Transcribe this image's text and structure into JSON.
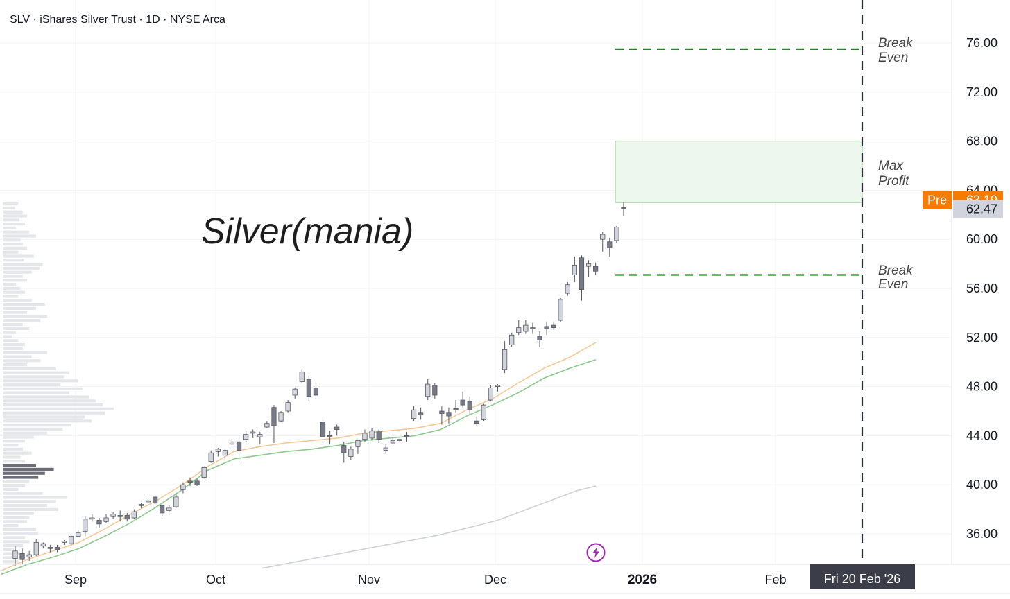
{
  "chart_data": {
    "type": "candlestick",
    "title": "SLV · iShares Silver Trust · 1D · NYSE Arca",
    "annotation": "Silver(mania)",
    "y_ticks": [
      "76.00",
      "72.00",
      "68.00",
      "64.00",
      "60.00",
      "56.00",
      "52.00",
      "48.00",
      "44.00",
      "40.00",
      "36.00"
    ],
    "x_ticks": [
      {
        "label": "Sep",
        "bold": false
      },
      {
        "label": "Oct",
        "bold": false
      },
      {
        "label": "Nov",
        "bold": false
      },
      {
        "label": "Dec",
        "bold": false
      },
      {
        "label": "2026",
        "bold": true
      },
      {
        "label": "Feb",
        "bold": false
      }
    ],
    "ylim": [
      33,
      79
    ],
    "candles": [
      {
        "d": "Aug 26",
        "o": 34.0,
        "h": 35.0,
        "l": 33.4,
        "c": 34.6
      },
      {
        "d": "Aug 27",
        "o": 34.4,
        "h": 34.8,
        "l": 33.5,
        "c": 33.9
      },
      {
        "d": "Aug 28",
        "o": 34.1,
        "h": 34.6,
        "l": 33.8,
        "c": 34.3
      },
      {
        "d": "Aug 29",
        "o": 34.3,
        "h": 35.6,
        "l": 34.2,
        "c": 35.3
      },
      {
        "d": "Sep 02",
        "o": 35.0,
        "h": 35.3,
        "l": 34.8,
        "c": 35.2
      },
      {
        "d": "Sep 03",
        "o": 34.8,
        "h": 35.1,
        "l": 34.5,
        "c": 34.9
      },
      {
        "d": "Sep 04",
        "o": 34.9,
        "h": 35.1,
        "l": 34.5,
        "c": 34.7
      },
      {
        "d": "Sep 05",
        "o": 35.3,
        "h": 35.5,
        "l": 35.1,
        "c": 35.4
      },
      {
        "d": "Sep 08",
        "o": 35.2,
        "h": 35.9,
        "l": 35.0,
        "c": 35.8
      },
      {
        "d": "Sep 09",
        "o": 35.8,
        "h": 36.3,
        "l": 35.7,
        "c": 36.1
      },
      {
        "d": "Sep 10",
        "o": 36.2,
        "h": 37.4,
        "l": 35.8,
        "c": 37.2
      },
      {
        "d": "Sep 11",
        "o": 37.2,
        "h": 37.6,
        "l": 37.0,
        "c": 37.3
      },
      {
        "d": "Sep 12",
        "o": 37.1,
        "h": 37.3,
        "l": 36.5,
        "c": 36.8
      },
      {
        "d": "Sep 15",
        "o": 37.0,
        "h": 37.6,
        "l": 36.9,
        "c": 37.3
      },
      {
        "d": "Sep 16",
        "o": 37.4,
        "h": 37.8,
        "l": 37.2,
        "c": 37.6
      },
      {
        "d": "Sep 17",
        "o": 37.4,
        "h": 37.9,
        "l": 37.0,
        "c": 37.5
      },
      {
        "d": "Sep 18",
        "o": 37.5,
        "h": 37.7,
        "l": 37.0,
        "c": 37.2
      },
      {
        "d": "Sep 19",
        "o": 37.3,
        "h": 38.0,
        "l": 37.2,
        "c": 37.8
      },
      {
        "d": "Sep 22",
        "o": 38.3,
        "h": 38.5,
        "l": 38.1,
        "c": 38.4
      },
      {
        "d": "Sep 23",
        "o": 38.6,
        "h": 38.9,
        "l": 38.5,
        "c": 38.7
      },
      {
        "d": "Sep 24",
        "o": 39.0,
        "h": 39.2,
        "l": 38.3,
        "c": 38.5
      },
      {
        "d": "Sep 25",
        "o": 38.3,
        "h": 38.5,
        "l": 37.4,
        "c": 37.7
      },
      {
        "d": "Sep 26",
        "o": 37.9,
        "h": 38.3,
        "l": 37.8,
        "c": 38.1
      },
      {
        "d": "Sep 29",
        "o": 38.2,
        "h": 39.3,
        "l": 38.1,
        "c": 39.0
      },
      {
        "d": "Sep 30",
        "o": 39.6,
        "h": 40.2,
        "l": 39.3,
        "c": 40.0
      },
      {
        "d": "Oct 01",
        "o": 40.3,
        "h": 40.6,
        "l": 39.9,
        "c": 40.2
      },
      {
        "d": "Oct 02",
        "o": 40.3,
        "h": 40.5,
        "l": 39.9,
        "c": 40.0
      },
      {
        "d": "Oct 03",
        "o": 40.6,
        "h": 41.5,
        "l": 40.5,
        "c": 41.4
      },
      {
        "d": "Oct 06",
        "o": 41.9,
        "h": 42.8,
        "l": 41.8,
        "c": 42.6
      },
      {
        "d": "Oct 07",
        "o": 42.7,
        "h": 43.0,
        "l": 42.3,
        "c": 42.9
      },
      {
        "d": "Oct 08",
        "o": 42.4,
        "h": 42.9,
        "l": 42.0,
        "c": 42.8
      },
      {
        "d": "Oct 09",
        "o": 43.3,
        "h": 43.8,
        "l": 42.8,
        "c": 43.5
      },
      {
        "d": "Oct 10",
        "o": 43.5,
        "h": 44.1,
        "l": 41.8,
        "c": 42.8
      },
      {
        "d": "Oct 13",
        "o": 43.7,
        "h": 44.4,
        "l": 43.4,
        "c": 44.1
      },
      {
        "d": "Oct 14",
        "o": 44.2,
        "h": 44.5,
        "l": 43.8,
        "c": 44.3
      },
      {
        "d": "Oct 15",
        "o": 43.9,
        "h": 44.3,
        "l": 43.3,
        "c": 44.1
      },
      {
        "d": "Oct 16",
        "o": 44.7,
        "h": 45.2,
        "l": 44.6,
        "c": 45.0
      },
      {
        "d": "Oct 17",
        "o": 46.3,
        "h": 46.5,
        "l": 43.4,
        "c": 44.8
      },
      {
        "d": "Oct 20",
        "o": 45.2,
        "h": 46.0,
        "l": 45.1,
        "c": 45.9
      },
      {
        "d": "Oct 21",
        "o": 46.0,
        "h": 46.9,
        "l": 45.9,
        "c": 46.7
      },
      {
        "d": "Oct 22",
        "o": 47.3,
        "h": 47.9,
        "l": 47.0,
        "c": 47.8
      },
      {
        "d": "Oct 23",
        "o": 48.4,
        "h": 49.4,
        "l": 48.3,
        "c": 49.2
      },
      {
        "d": "Oct 24",
        "o": 48.6,
        "h": 48.9,
        "l": 46.8,
        "c": 47.2
      },
      {
        "d": "Oct 27",
        "o": 47.9,
        "h": 48.1,
        "l": 47.0,
        "c": 47.3
      },
      {
        "d": "Oct 28",
        "o": 45.1,
        "h": 45.3,
        "l": 43.4,
        "c": 43.9
      },
      {
        "d": "Oct 29",
        "o": 44.0,
        "h": 44.4,
        "l": 43.3,
        "c": 43.9
      },
      {
        "d": "Oct 30",
        "o": 44.7,
        "h": 44.9,
        "l": 44.0,
        "c": 44.5
      },
      {
        "d": "Oct 31",
        "o": 43.2,
        "h": 43.5,
        "l": 41.8,
        "c": 42.6
      },
      {
        "d": "Nov 03",
        "o": 42.3,
        "h": 43.1,
        "l": 42.0,
        "c": 42.9
      },
      {
        "d": "Nov 04",
        "o": 43.1,
        "h": 43.7,
        "l": 42.5,
        "c": 43.6
      },
      {
        "d": "Nov 05",
        "o": 43.7,
        "h": 44.5,
        "l": 43.5,
        "c": 44.2
      },
      {
        "d": "Nov 06",
        "o": 43.8,
        "h": 44.6,
        "l": 43.6,
        "c": 44.4
      },
      {
        "d": "Nov 07",
        "o": 44.4,
        "h": 44.5,
        "l": 43.4,
        "c": 43.7
      },
      {
        "d": "Nov 10",
        "o": 42.8,
        "h": 43.3,
        "l": 42.5,
        "c": 43.0
      },
      {
        "d": "Nov 11",
        "o": 43.4,
        "h": 43.9,
        "l": 43.3,
        "c": 43.6
      },
      {
        "d": "Nov 12",
        "o": 43.6,
        "h": 43.9,
        "l": 43.4,
        "c": 43.7
      },
      {
        "d": "Nov 13",
        "o": 44.0,
        "h": 44.3,
        "l": 43.5,
        "c": 43.9
      },
      {
        "d": "Nov 14",
        "o": 45.4,
        "h": 46.4,
        "l": 45.2,
        "c": 46.1
      },
      {
        "d": "Nov 17",
        "o": 45.9,
        "h": 46.3,
        "l": 45.3,
        "c": 45.7
      },
      {
        "d": "Nov 18",
        "o": 47.2,
        "h": 48.6,
        "l": 46.9,
        "c": 48.2
      },
      {
        "d": "Nov 19",
        "o": 48.1,
        "h": 48.3,
        "l": 47.0,
        "c": 47.3
      },
      {
        "d": "Nov 20",
        "o": 46.0,
        "h": 46.4,
        "l": 44.9,
        "c": 45.8
      },
      {
        "d": "Nov 21",
        "o": 45.9,
        "h": 46.3,
        "l": 45.0,
        "c": 45.6
      },
      {
        "d": "Nov 24",
        "o": 46.2,
        "h": 46.9,
        "l": 45.9,
        "c": 46.1
      },
      {
        "d": "Nov 25",
        "o": 46.9,
        "h": 47.6,
        "l": 46.3,
        "c": 46.5
      },
      {
        "d": "Nov 26",
        "o": 46.8,
        "h": 47.2,
        "l": 45.7,
        "c": 46.1
      },
      {
        "d": "Nov 28",
        "o": 45.2,
        "h": 45.5,
        "l": 44.8,
        "c": 45.0
      },
      {
        "d": "Dec 01",
        "o": 45.3,
        "h": 46.6,
        "l": 45.2,
        "c": 46.5
      },
      {
        "d": "Dec 02",
        "o": 46.9,
        "h": 48.1,
        "l": 46.8,
        "c": 47.9
      },
      {
        "d": "Dec 03",
        "o": 48.0,
        "h": 48.2,
        "l": 47.6,
        "c": 48.1
      },
      {
        "d": "Dec 04",
        "o": 49.4,
        "h": 51.7,
        "l": 49.1,
        "c": 51.0
      },
      {
        "d": "Dec 05",
        "o": 51.4,
        "h": 52.4,
        "l": 51.2,
        "c": 52.2
      },
      {
        "d": "Dec 08",
        "o": 52.4,
        "h": 53.4,
        "l": 52.2,
        "c": 52.8
      },
      {
        "d": "Dec 09",
        "o": 52.5,
        "h": 53.4,
        "l": 52.3,
        "c": 53.0
      },
      {
        "d": "Dec 10",
        "o": 52.8,
        "h": 53.2,
        "l": 52.3,
        "c": 52.7
      },
      {
        "d": "Dec 11",
        "o": 52.1,
        "h": 52.5,
        "l": 51.2,
        "c": 51.8
      },
      {
        "d": "Dec 12",
        "o": 52.9,
        "h": 53.3,
        "l": 52.2,
        "c": 52.7
      },
      {
        "d": "Dec 15",
        "o": 53.0,
        "h": 53.3,
        "l": 52.6,
        "c": 52.8
      },
      {
        "d": "Dec 16",
        "o": 53.4,
        "h": 55.2,
        "l": 53.3,
        "c": 55.1
      },
      {
        "d": "Dec 17",
        "o": 55.6,
        "h": 56.5,
        "l": 55.4,
        "c": 56.3
      },
      {
        "d": "Dec 18",
        "o": 57.1,
        "h": 58.6,
        "l": 56.5,
        "c": 57.9
      },
      {
        "d": "Dec 19",
        "o": 58.5,
        "h": 58.7,
        "l": 55.0,
        "c": 55.9
      },
      {
        "d": "Dec 22",
        "o": 57.8,
        "h": 58.3,
        "l": 56.9,
        "c": 58.0
      },
      {
        "d": "Dec 23",
        "o": 57.8,
        "h": 58.1,
        "l": 57.1,
        "c": 57.4
      },
      {
        "d": "Dec 24",
        "o": 60.0,
        "h": 60.6,
        "l": 59.0,
        "c": 60.4
      },
      {
        "d": "Dec 26",
        "o": 59.8,
        "h": 60.1,
        "l": 58.6,
        "c": 59.3
      },
      {
        "d": "Dec 29",
        "o": 59.9,
        "h": 61.1,
        "l": 59.7,
        "c": 61.0
      },
      {
        "d": "Dec 30",
        "o": 62.6,
        "h": 63.0,
        "l": 61.9,
        "c": 62.5
      }
    ],
    "ma_fast": [
      33.0,
      33.9,
      34.6,
      35.3,
      36.4,
      37.6,
      38.7,
      40.0,
      41.5,
      42.7,
      43.1,
      43.4,
      43.6,
      43.8,
      44.2,
      44.4,
      44.6,
      45.0,
      46.1,
      47.0,
      48.3,
      49.5,
      50.4,
      51.6
    ],
    "ma_mid": [
      32.7,
      33.5,
      34.1,
      34.8,
      35.8,
      36.9,
      38.2,
      39.6,
      41.2,
      42.1,
      42.4,
      42.7,
      42.9,
      43.2,
      43.6,
      43.8,
      44.0,
      44.5,
      45.6,
      46.5,
      47.5,
      48.7,
      49.5,
      50.2
    ],
    "ma_slow": [
      33.2,
      33.5,
      33.8,
      34.1,
      34.4,
      34.7,
      35.0,
      35.3,
      35.6,
      35.9,
      36.3,
      36.7,
      37.1,
      37.7,
      38.3,
      38.9,
      39.5,
      39.9
    ],
    "volume_profile": [
      14,
      11,
      18,
      22,
      15,
      20,
      12,
      24,
      30,
      16,
      18,
      22,
      14,
      28,
      19,
      36,
      33,
      26,
      18,
      22,
      12,
      16,
      20,
      14,
      26,
      38,
      30,
      22,
      40,
      34,
      18,
      24,
      12,
      8,
      14,
      20,
      18,
      40,
      26,
      34,
      22,
      48,
      60,
      55,
      68,
      52,
      72,
      60,
      78,
      84,
      90,
      100,
      92,
      74,
      80,
      62,
      54,
      40,
      28,
      20,
      14,
      18,
      26,
      16,
      20,
      30,
      46,
      38,
      32,
      24,
      20,
      14,
      36,
      58,
      48,
      40,
      50,
      28,
      24,
      22,
      14,
      30,
      32,
      20,
      24,
      18,
      10,
      16,
      12,
      14
    ],
    "volume_profile_poc_rows": [
      65,
      66,
      67,
      68
    ],
    "strategy": {
      "break_even_upper": 75.5,
      "break_even_lower": 57.1,
      "profit_zone_top": 68.0,
      "profit_zone_bottom": 63.0,
      "label_break_even": "Break Even",
      "label_max_profit": "Max Profit",
      "expiry_label": "Fri 20 Feb '26"
    },
    "price_tags": {
      "pre_label": "Pre",
      "pre_value": "63.19",
      "pre_price": 63.19,
      "last_value": "62.47",
      "last_price": 62.47
    }
  },
  "colors": {
    "up_candle": "#d1d4dc",
    "down_candle": "#787b86",
    "wick": "#555861",
    "ma_fast": "#f7c896",
    "ma_mid": "#8cc98c",
    "ma_slow": "#cfd0d4",
    "break_even_line": "#1e8a1e",
    "profit_zone_fill": "#eef7ee",
    "profit_zone_stroke": "#8fc98f",
    "pre_tag_bg": "#f57c00",
    "last_tag_bg": "#d1d4dc",
    "expiry_tag_bg": "#3b3e48",
    "grid": "#f2f3f5",
    "vp_bar": "#e4e6ea",
    "vp_poc": "#6b6e78",
    "lightning_icon": "#9c27b0"
  },
  "icons": {
    "lightning": "lightning-icon"
  }
}
